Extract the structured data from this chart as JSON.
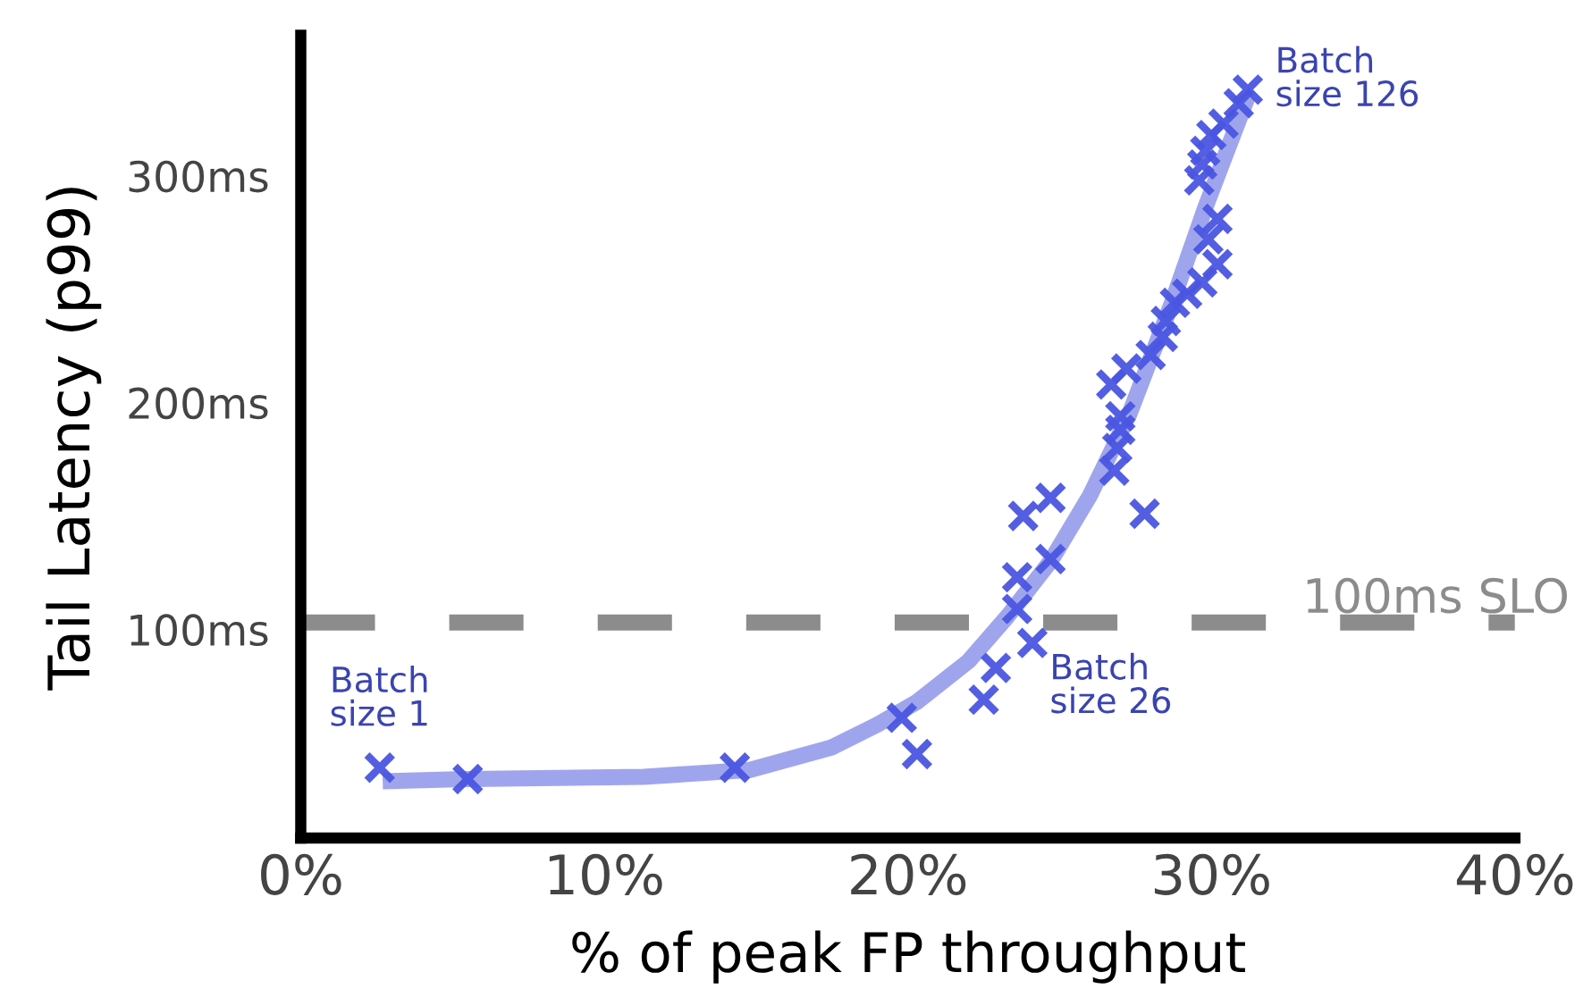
{
  "chart_data": {
    "type": "scatter",
    "xlabel": "% of peak FP throughput",
    "ylabel": "Tail Latency (p99)",
    "xlim": [
      0,
      40
    ],
    "xticks": [
      {
        "value": 0,
        "label": "0%"
      },
      {
        "value": 10,
        "label": "10%"
      },
      {
        "value": 20,
        "label": "20%"
      },
      {
        "value": 30,
        "label": "30%"
      },
      {
        "value": 40,
        "label": "40%"
      }
    ],
    "ylim": [
      8,
      362
    ],
    "yticks": [
      {
        "value": 100,
        "label": "100ms"
      },
      {
        "value": 200,
        "label": "200ms"
      },
      {
        "value": 300,
        "label": "300ms"
      }
    ],
    "grid": false,
    "legend": false,
    "series": [
      {
        "type": "line",
        "color": "#9aa0ec",
        "marker": "none",
        "line_style": "solid",
        "x": [
          2.7,
          5.5,
          11.3,
          14.8,
          17.5,
          19,
          20.3,
          22,
          23.3,
          24.7,
          26,
          27.3,
          28.7,
          29.8,
          31.2
        ],
        "values": [
          33,
          34,
          35,
          38,
          48,
          58,
          68,
          86,
          106,
          130,
          159,
          195,
          244,
          286,
          335
        ]
      },
      {
        "color": "#4a55e0",
        "marker": "cross",
        "x": [
          2.6,
          5.5,
          14.3,
          19.8,
          20.3,
          22.5,
          22.9,
          24.1,
          23.6,
          23.6,
          23.8,
          24.7,
          24.7,
          26.8,
          26.9,
          27.0,
          27.0,
          26.7,
          27.2,
          27.8,
          28.0,
          28.4,
          28.5,
          28.8,
          29.2,
          29.7,
          30.2,
          29.9,
          30.2,
          29.6,
          29.7,
          29.8,
          30.0,
          30.4,
          30.9,
          31.2
        ],
        "values": [
          39,
          34,
          39,
          61,
          45,
          69,
          83,
          94,
          109,
          123,
          150,
          158,
          131,
          170,
          180,
          188,
          194,
          208,
          215,
          151,
          221,
          229,
          236,
          244,
          248,
          253,
          261,
          272,
          281,
          298,
          305,
          311,
          318,
          323,
          332,
          338
        ]
      }
    ],
    "ref_lines": [
      {
        "axis": "y",
        "value": 103,
        "label": "100ms SLO",
        "color": "#8c8c8c",
        "line_style": "dashed"
      }
    ],
    "annotations": [
      {
        "text": "Batch\nsize 1",
        "x": 2.6,
        "y": 39
      },
      {
        "text": "Batch\nsize 26",
        "x": 24.1,
        "y": 94
      },
      {
        "text": "Batch\nsize 126",
        "x": 31.2,
        "y": 338
      }
    ]
  }
}
